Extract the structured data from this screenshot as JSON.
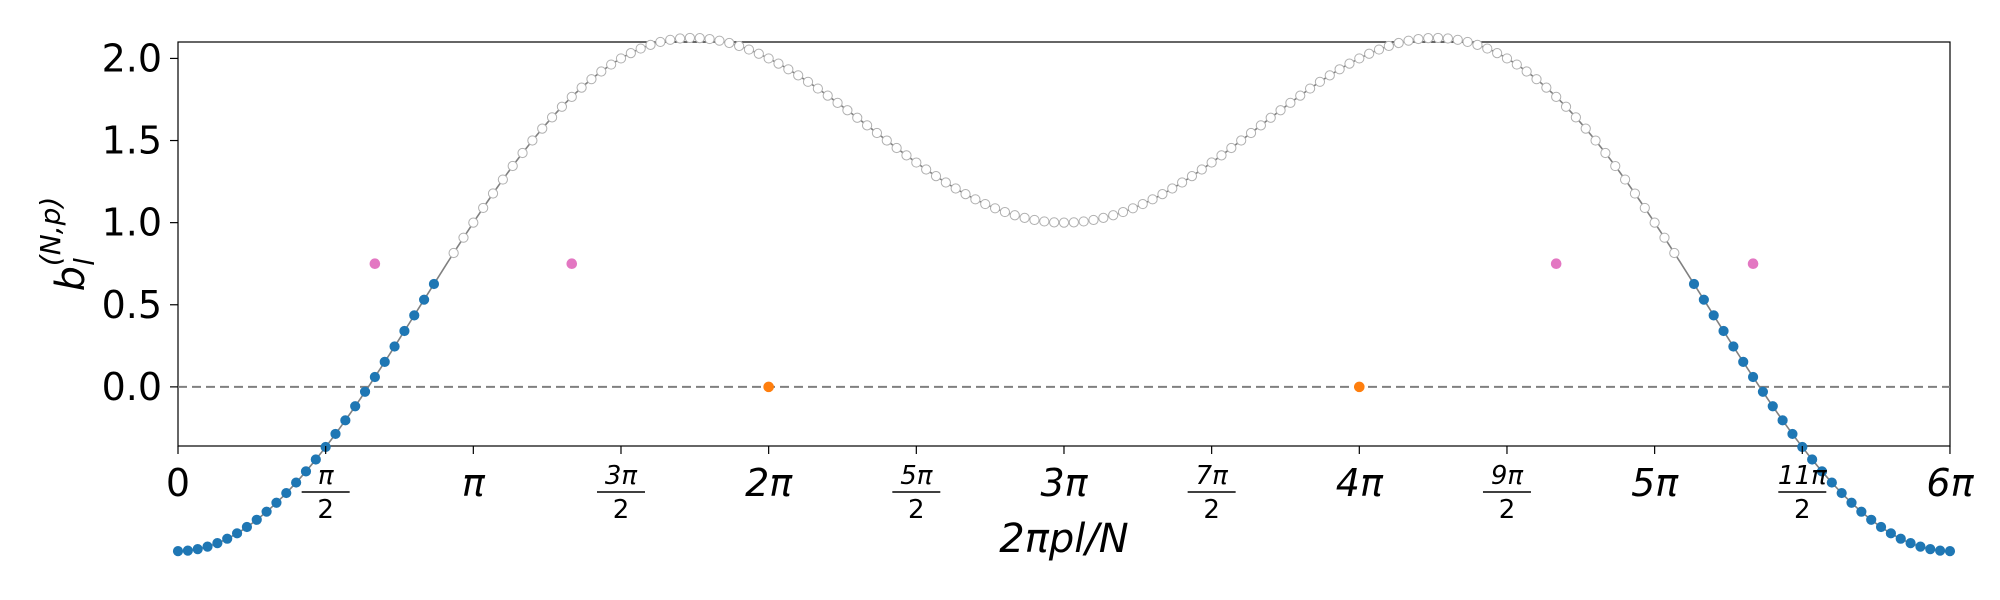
{
  "chart_data": {
    "type": "scatter",
    "xlabel": "2πpl/N",
    "ylabel": "b_l^(N,p)",
    "ylabel_parts": {
      "base": "b",
      "sub": "l",
      "sup": "(N,p)"
    },
    "xlim": [
      0,
      18.85
    ],
    "ylim": [
      -0.36,
      2.1
    ],
    "grid": false,
    "curve": {
      "description_formula": "y = 1 - cos(x/3) - cos(2x/3)",
      "x_start": 0,
      "x_end": 18.8496,
      "color": "#808080"
    },
    "reference_line": {
      "y": 0,
      "style": "dashed",
      "color": "#808080"
    },
    "marker_count": 180,
    "marker_categories": [
      {
        "rule": "y < 0.70",
        "fill": "#1f77b4",
        "stroke": "#1f77b4"
      },
      {
        "rule": "y > 0.80",
        "fill": "#ffffff",
        "stroke": "#b0b0b0"
      }
    ],
    "highlight_points": [
      {
        "x": 2.0944,
        "y": 0.75,
        "color": "#e377c2"
      },
      {
        "x": 4.1888,
        "y": 0.75,
        "color": "#e377c2"
      },
      {
        "x": 14.6608,
        "y": 0.75,
        "color": "#e377c2"
      },
      {
        "x": 16.7552,
        "y": 0.75,
        "color": "#e377c2"
      },
      {
        "x": 6.2832,
        "y": 0.0,
        "color": "#ff7f0e"
      },
      {
        "x": 12.5664,
        "y": 0.0,
        "color": "#ff7f0e"
      }
    ],
    "yticks": [
      {
        "value": 0.0,
        "label": "0.0"
      },
      {
        "value": 0.5,
        "label": "0.5"
      },
      {
        "value": 1.0,
        "label": "1.0"
      },
      {
        "value": 1.5,
        "label": "1.5"
      },
      {
        "value": 2.0,
        "label": "2.0"
      }
    ],
    "xticks": [
      {
        "value": 0,
        "label": "0"
      },
      {
        "value": 1.5708,
        "num": "π",
        "den": "2"
      },
      {
        "value": 3.1416,
        "label": "π"
      },
      {
        "value": 4.7124,
        "num": "3π",
        "den": "2"
      },
      {
        "value": 6.2832,
        "label": "2π"
      },
      {
        "value": 7.854,
        "num": "5π",
        "den": "2"
      },
      {
        "value": 9.4248,
        "label": "3π"
      },
      {
        "value": 10.9956,
        "num": "7π",
        "den": "2"
      },
      {
        "value": 12.5664,
        "label": "4π"
      },
      {
        "value": 14.1372,
        "num": "9π",
        "den": "2"
      },
      {
        "value": 15.708,
        "label": "5π"
      },
      {
        "value": 17.2788,
        "num": "11π",
        "den": "2"
      },
      {
        "value": 18.8496,
        "label": "6π"
      }
    ]
  }
}
